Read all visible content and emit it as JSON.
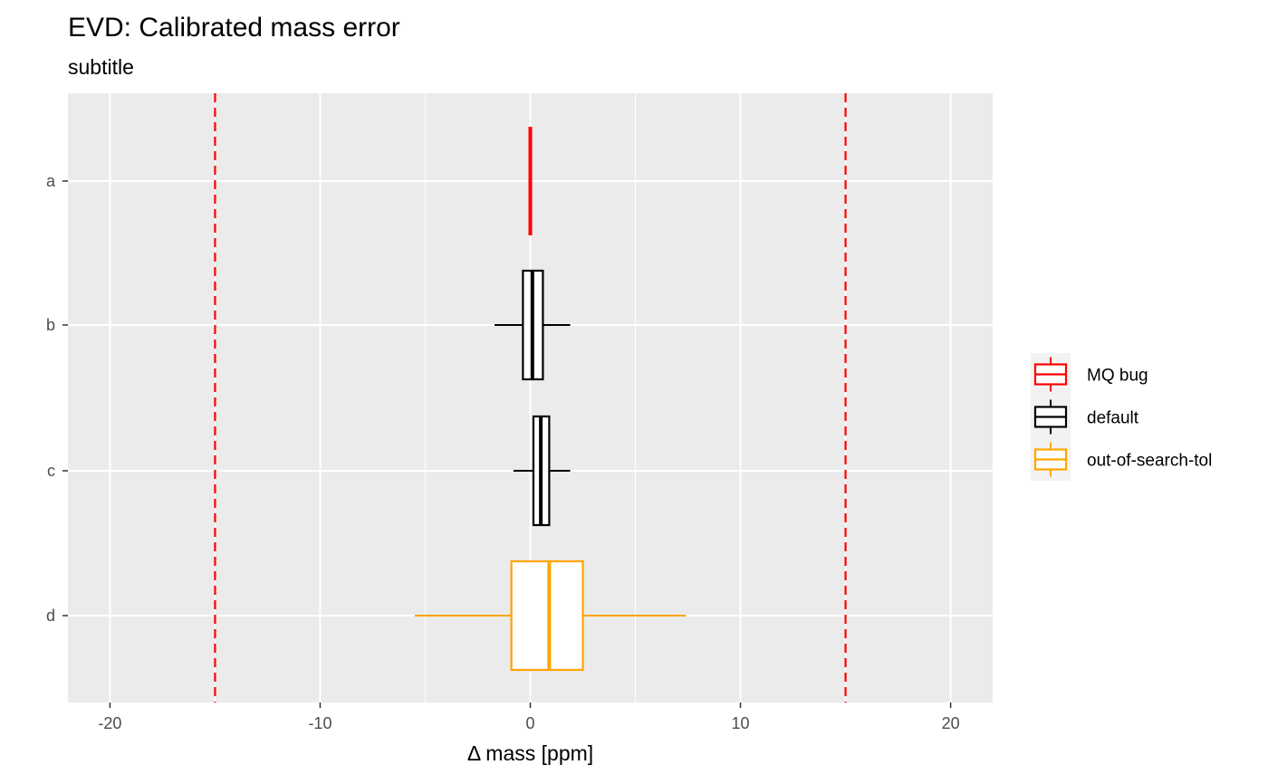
{
  "chart_data": {
    "type": "boxplot",
    "title": "EVD: Calibrated mass error",
    "subtitle": "subtitle",
    "xlabel": "Δ mass [ppm]",
    "ylabel": "",
    "xlim": [
      -22,
      22
    ],
    "x_ticks": [
      -20,
      -10,
      0,
      10,
      20
    ],
    "x_tick_labels": [
      "-20",
      "-10",
      "0",
      "10",
      "20"
    ],
    "categories": [
      "a",
      "b",
      "c",
      "d"
    ],
    "grid": true,
    "panel_background": "#ebebeb",
    "reference_lines": {
      "values": [
        -15,
        15
      ],
      "color": "#ff0000",
      "style": "dashed"
    },
    "boxes": [
      {
        "category": "a",
        "group": "MQ bug",
        "min": 0,
        "q1": 0,
        "median": 0,
        "q3": 0,
        "max": 0
      },
      {
        "category": "b",
        "group": "default",
        "min": -1.7,
        "q1": -0.35,
        "median": 0.1,
        "q3": 0.6,
        "max": 1.9
      },
      {
        "category": "c",
        "group": "default",
        "min": -0.8,
        "q1": 0.15,
        "median": 0.5,
        "q3": 0.9,
        "max": 1.9
      },
      {
        "category": "d",
        "group": "out-of-search-tol",
        "min": -5.5,
        "q1": -0.9,
        "median": 0.9,
        "q3": 2.5,
        "max": 7.4
      }
    ],
    "legend": {
      "position": "right",
      "entries": [
        {
          "label": "MQ bug",
          "color": "#ff0000"
        },
        {
          "label": "default",
          "color": "#000000"
        },
        {
          "label": "out-of-search-tol",
          "color": "#ffa500"
        }
      ]
    }
  }
}
